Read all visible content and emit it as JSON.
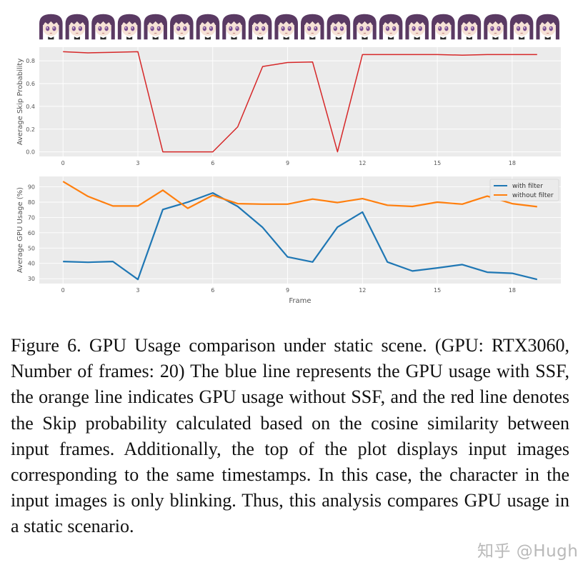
{
  "chart_data": [
    {
      "type": "line",
      "title": "",
      "xlabel": "",
      "ylabel": "Average Skip Probability",
      "x": [
        0,
        1,
        2,
        3,
        4,
        5,
        6,
        7,
        8,
        9,
        10,
        11,
        12,
        13,
        14,
        15,
        16,
        17,
        18,
        19
      ],
      "xticks": [
        0,
        3,
        6,
        9,
        12,
        15,
        18
      ],
      "yticks": [
        0.0,
        0.2,
        0.4,
        0.6,
        0.8
      ],
      "ytick_labels": [
        "0.0",
        "0.2",
        "0.4",
        "0.6",
        "0.8"
      ],
      "xlim": [
        -0.95,
        19.95
      ],
      "ylim": [
        -0.04,
        0.92
      ],
      "grid": true,
      "series": [
        {
          "name": "skip probability",
          "color": "#d62728",
          "values": [
            0.88,
            0.87,
            0.875,
            0.88,
            0.0,
            0.0,
            0.0,
            0.22,
            0.75,
            0.785,
            0.79,
            0.0,
            0.855,
            0.855,
            0.855,
            0.855,
            0.85,
            0.855,
            0.855,
            0.855
          ]
        }
      ]
    },
    {
      "type": "line",
      "title": "",
      "xlabel": "Frame",
      "ylabel": "Average GPU Usage (%)",
      "x": [
        0,
        1,
        2,
        3,
        4,
        5,
        6,
        7,
        8,
        9,
        10,
        11,
        12,
        13,
        14,
        15,
        16,
        17,
        18,
        19
      ],
      "xticks": [
        0,
        3,
        6,
        9,
        12,
        15,
        18
      ],
      "yticks": [
        30,
        40,
        50,
        60,
        70,
        80,
        90
      ],
      "ytick_labels": [
        "30",
        "40",
        "50",
        "60",
        "70",
        "80",
        "90"
      ],
      "xlim": [
        -0.95,
        19.95
      ],
      "ylim": [
        26.8,
        96.8
      ],
      "grid": true,
      "legend": "top-right",
      "series": [
        {
          "name": "with filter",
          "color": "#1f77b4",
          "values": [
            41.2,
            40.7,
            41.2,
            29.5,
            75.2,
            80.0,
            86.0,
            77.2,
            63.5,
            44.2,
            40.9,
            63.7,
            73.5,
            40.9,
            35.0,
            37.0,
            39.2,
            34.2,
            33.5,
            29.5
          ]
        },
        {
          "name": "without filter",
          "color": "#ff7f0e",
          "values": [
            93.5,
            83.8,
            77.5,
            77.5,
            87.8,
            76.0,
            84.5,
            79.0,
            78.7,
            78.7,
            82.0,
            79.7,
            82.3,
            78.0,
            77.2,
            80.0,
            78.7,
            83.9,
            79.0,
            77.0
          ]
        }
      ]
    }
  ],
  "caption": "Figure 6.  GPU Usage comparison under static scene.  (GPU: RTX3060, Number of frames:  20) The blue line represents the GPU usage with SSF, the orange line indicates GPU usage without SSF, and the red line denotes the Skip probability calculated based on the cosine similarity between input frames. Additionally, the top of the plot displays input images corresponding to the same timestamps. In this case, the character in the input images is only blinking. Thus, this analysis compares GPU usage in a static scenario.",
  "watermark": "知乎 @Hugh",
  "thumbnail_count": 20,
  "colors": {
    "plot_bg": "#ebebeb",
    "grid": "#ffffff",
    "hair": "#5a3a63",
    "text": "#111111"
  }
}
